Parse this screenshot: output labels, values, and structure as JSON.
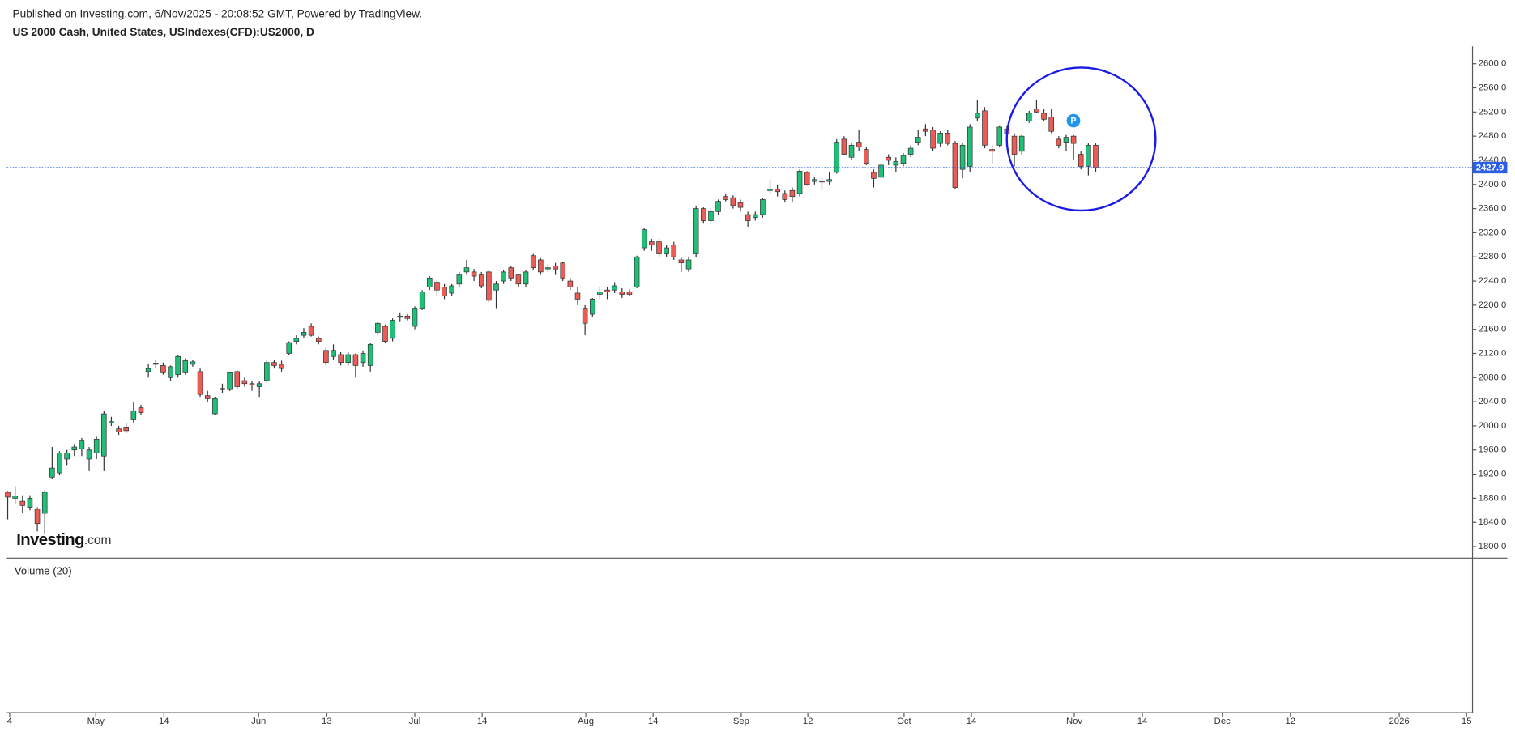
{
  "header": {
    "published": "Published on Investing.com, 6/Nov/2025 - 20:08:52 GMT, Powered by TradingView.",
    "symbol": "US 2000 Cash, United States, USIndexes(CFD):US2000, D"
  },
  "logo": {
    "main": "Investing",
    "suffix": ".com"
  },
  "volume_label": "Volume (20)",
  "marker_label": "P",
  "chart_data": {
    "type": "candlestick",
    "categories": [
      null,
      null,
      null,
      null,
      null,
      null,
      null,
      null,
      null,
      null,
      null,
      null,
      null,
      null,
      null,
      null,
      null,
      null,
      null,
      null,
      null,
      null,
      null,
      null,
      null,
      null,
      null,
      null,
      null,
      null,
      null,
      null,
      null,
      null,
      null,
      null,
      null,
      null,
      null,
      null,
      null,
      null,
      null,
      null,
      null,
      null,
      null,
      null,
      null,
      null,
      null,
      null,
      null,
      null,
      null,
      null,
      null,
      null,
      null,
      null,
      null,
      null,
      null,
      null,
      null,
      null,
      null,
      null,
      null,
      null,
      null,
      null,
      null,
      null,
      null,
      null,
      null,
      null,
      null,
      null,
      null,
      null,
      null,
      null,
      null,
      null,
      null,
      null,
      null,
      null,
      null,
      null,
      null,
      null,
      null,
      null,
      null,
      null,
      null,
      null,
      null,
      null,
      null,
      null,
      null,
      null,
      null,
      null,
      null,
      null,
      null,
      null,
      null,
      null,
      null,
      null,
      null,
      null,
      null,
      null,
      null,
      null,
      null,
      null,
      null,
      null,
      null,
      null,
      null,
      null,
      null,
      null,
      null,
      null,
      null,
      null,
      null,
      null,
      null,
      null,
      null,
      null,
      null,
      null,
      null,
      null,
      null,
      null
    ],
    "open": [
      1890,
      1880,
      1875,
      1865,
      1862,
      1855,
      1915,
      1922,
      1945,
      1960,
      1962,
      1945,
      1955,
      1950,
      2005,
      1995,
      1998,
      2010,
      2030,
      2090,
      2102,
      2100,
      2080,
      2085,
      2088,
      2102,
      2090,
      2050,
      2020,
      2060,
      2060,
      2090,
      2075,
      2070,
      2065,
      2075,
      2105,
      2102,
      2120,
      2140,
      2150,
      2165,
      2145,
      2125,
      2115,
      2118,
      2105,
      2118,
      2105,
      2100,
      2155,
      2165,
      2145,
      2180,
      2182,
      2165,
      2195,
      2230,
      2238,
      2230,
      2220,
      2235,
      2255,
      2255,
      2250,
      2255,
      2225,
      2240,
      2262,
      2250,
      2235,
      2282,
      2275,
      2260,
      2265,
      2270,
      2240,
      2220,
      2195,
      2185,
      2218,
      2225,
      2225,
      2222,
      2222,
      2230,
      2295,
      2305,
      2305,
      2285,
      2300,
      2275,
      2260,
      2285,
      2360,
      2340,
      2355,
      2380,
      2378,
      2370,
      2350,
      2345,
      2350,
      2390,
      2392,
      2385,
      2390,
      2385,
      2420,
      2405,
      2406,
      2405,
      2420,
      2475,
      2445,
      2470,
      2458,
      2420,
      2412,
      2445,
      2432,
      2435,
      2450,
      2470,
      2492,
      2490,
      2468,
      2485,
      2468,
      2425,
      2430,
      2510,
      2522,
      2458,
      2465,
      2492,
      2480,
      2455,
      2505,
      2525,
      2518,
      2512,
      2475,
      2470,
      2480,
      2450,
      2430,
      2465
    ],
    "high": [
      1892,
      1900,
      1885,
      1885,
      1865,
      1893,
      1965,
      1958,
      1960,
      1970,
      1980,
      1965,
      1982,
      2025,
      2015,
      2000,
      2005,
      2040,
      2035,
      2102,
      2110,
      2105,
      2100,
      2118,
      2112,
      2110,
      2095,
      2058,
      2048,
      2070,
      2090,
      2092,
      2080,
      2075,
      2075,
      2108,
      2110,
      2108,
      2140,
      2150,
      2162,
      2170,
      2148,
      2130,
      2135,
      2122,
      2122,
      2120,
      2125,
      2138,
      2172,
      2168,
      2178,
      2188,
      2185,
      2198,
      2225,
      2248,
      2242,
      2235,
      2235,
      2255,
      2275,
      2260,
      2255,
      2258,
      2240,
      2258,
      2265,
      2252,
      2258,
      2285,
      2278,
      2268,
      2270,
      2272,
      2245,
      2230,
      2200,
      2212,
      2230,
      2230,
      2238,
      2228,
      2226,
      2282,
      2328,
      2310,
      2310,
      2300,
      2305,
      2280,
      2280,
      2365,
      2362,
      2360,
      2375,
      2385,
      2382,
      2375,
      2355,
      2355,
      2378,
      2408,
      2400,
      2390,
      2395,
      2425,
      2422,
      2412,
      2410,
      2420,
      2475,
      2480,
      2468,
      2490,
      2462,
      2425,
      2435,
      2450,
      2445,
      2452,
      2465,
      2490,
      2500,
      2495,
      2488,
      2490,
      2472,
      2468,
      2500,
      2540,
      2528,
      2465,
      2498,
      2498,
      2485,
      2482,
      2522,
      2540,
      2525,
      2525,
      2480,
      2482,
      2482,
      2455,
      2468,
      2468
    ],
    "low": [
      1845,
      1870,
      1855,
      1860,
      1825,
      1820,
      1912,
      1918,
      1935,
      1950,
      1950,
      1925,
      1945,
      1925,
      2000,
      1985,
      1988,
      2005,
      2018,
      2080,
      2095,
      2085,
      2075,
      2080,
      2085,
      2098,
      2048,
      2040,
      2018,
      2055,
      2058,
      2062,
      2065,
      2058,
      2048,
      2072,
      2095,
      2090,
      2118,
      2135,
      2145,
      2148,
      2135,
      2100,
      2110,
      2100,
      2100,
      2080,
      2098,
      2090,
      2150,
      2138,
      2140,
      2172,
      2175,
      2160,
      2192,
      2225,
      2215,
      2210,
      2215,
      2230,
      2250,
      2240,
      2228,
      2205,
      2195,
      2235,
      2240,
      2230,
      2230,
      2258,
      2250,
      2255,
      2250,
      2240,
      2225,
      2200,
      2150,
      2180,
      2210,
      2210,
      2220,
      2212,
      2215,
      2228,
      2290,
      2290,
      2280,
      2280,
      2275,
      2255,
      2255,
      2280,
      2335,
      2335,
      2350,
      2372,
      2360,
      2355,
      2330,
      2340,
      2345,
      2385,
      2380,
      2370,
      2370,
      2380,
      2398,
      2400,
      2390,
      2400,
      2418,
      2448,
      2440,
      2455,
      2432,
      2395,
      2410,
      2432,
      2420,
      2430,
      2445,
      2465,
      2480,
      2455,
      2462,
      2465,
      2392,
      2410,
      2420,
      2505,
      2460,
      2435,
      2462,
      2480,
      2430,
      2450,
      2502,
      2518,
      2505,
      2485,
      2460,
      2455,
      2440,
      2425,
      2415,
      2420
    ],
    "close": [
      1882,
      1884,
      1868,
      1880,
      1838,
      1890,
      1930,
      1955,
      1955,
      1965,
      1975,
      1960,
      1978,
      2020,
      2007,
      1990,
      1992,
      2025,
      2022,
      2095,
      2104,
      2088,
      2098,
      2115,
      2108,
      2106,
      2052,
      2045,
      2045,
      2062,
      2088,
      2065,
      2070,
      2068,
      2070,
      2105,
      2100,
      2095,
      2138,
      2145,
      2155,
      2150,
      2140,
      2105,
      2125,
      2105,
      2118,
      2100,
      2120,
      2135,
      2170,
      2140,
      2175,
      2182,
      2178,
      2195,
      2222,
      2245,
      2225,
      2215,
      2232,
      2250,
      2262,
      2248,
      2232,
      2208,
      2235,
      2255,
      2245,
      2235,
      2255,
      2262,
      2255,
      2262,
      2260,
      2245,
      2230,
      2210,
      2170,
      2210,
      2222,
      2222,
      2232,
      2218,
      2218,
      2280,
      2325,
      2300,
      2285,
      2295,
      2280,
      2270,
      2275,
      2360,
      2340,
      2355,
      2372,
      2375,
      2365,
      2362,
      2340,
      2350,
      2375,
      2392,
      2388,
      2375,
      2380,
      2422,
      2400,
      2408,
      2404,
      2408,
      2470,
      2450,
      2465,
      2462,
      2435,
      2410,
      2432,
      2440,
      2438,
      2448,
      2460,
      2478,
      2488,
      2460,
      2485,
      2468,
      2395,
      2465,
      2495,
      2518,
      2465,
      2455,
      2495,
      2485,
      2450,
      2480,
      2518,
      2520,
      2508,
      2488,
      2465,
      2478,
      2468,
      2430,
      2465,
      2427.9
    ],
    "up_color": "#1fbf78",
    "down_color": "#ec5b56",
    "wick_color": "#333333",
    "last_price": 2427.9,
    "last_price_color": "#2a5ee8",
    "xlim": [
      -0.13,
      197.9
    ],
    "xticks": [
      {
        "value": 0.26,
        "label": "4"
      },
      {
        "value": 11.9,
        "label": "May"
      },
      {
        "value": 21.1,
        "label": "14"
      },
      {
        "value": 33.9,
        "label": "Jun"
      },
      {
        "value": 43.1,
        "label": "13"
      },
      {
        "value": 55,
        "label": "Jul"
      },
      {
        "value": 64.1,
        "label": "14"
      },
      {
        "value": 78.1,
        "label": "Aug"
      },
      {
        "value": 87.2,
        "label": "14"
      },
      {
        "value": 99.1,
        "label": "Sep"
      },
      {
        "value": 108.1,
        "label": "12"
      },
      {
        "value": 121.1,
        "label": "Oct"
      },
      {
        "value": 130.2,
        "label": "14"
      },
      {
        "value": 144.1,
        "label": "Nov"
      },
      {
        "value": 153.3,
        "label": "14"
      },
      {
        "value": 164.1,
        "label": "Dec"
      },
      {
        "value": 173.3,
        "label": "12"
      },
      {
        "value": 188,
        "label": "2026"
      },
      {
        "value": 197.1,
        "label": "15"
      }
    ],
    "ylim": [
      1780.8,
      2628.8
    ],
    "yticks": [
      {
        "value": 1800,
        "label": "1800.0"
      },
      {
        "value": 1840,
        "label": "1840.0"
      },
      {
        "value": 1880,
        "label": "1880.0"
      },
      {
        "value": 1920,
        "label": "1920.0"
      },
      {
        "value": 1960,
        "label": "1960.0"
      },
      {
        "value": 2000,
        "label": "2000.0"
      },
      {
        "value": 2040,
        "label": "2040.0"
      },
      {
        "value": 2080,
        "label": "2080.0"
      },
      {
        "value": 2120,
        "label": "2120.0"
      },
      {
        "value": 2160,
        "label": "2160.0"
      },
      {
        "value": 2200,
        "label": "2200.0"
      },
      {
        "value": 2240,
        "label": "2240.0"
      },
      {
        "value": 2280,
        "label": "2280.0"
      },
      {
        "value": 2320,
        "label": "2320.0"
      },
      {
        "value": 2360,
        "label": "2360.0"
      },
      {
        "value": 2400,
        "label": "2400.0"
      },
      {
        "value": 2440,
        "label": "2440.0"
      },
      {
        "value": 2480,
        "label": "2480.0"
      },
      {
        "value": 2520,
        "label": "2520.0"
      },
      {
        "value": 2560,
        "label": "2560.0"
      },
      {
        "value": 2600,
        "label": "2600.0"
      }
    ]
  }
}
